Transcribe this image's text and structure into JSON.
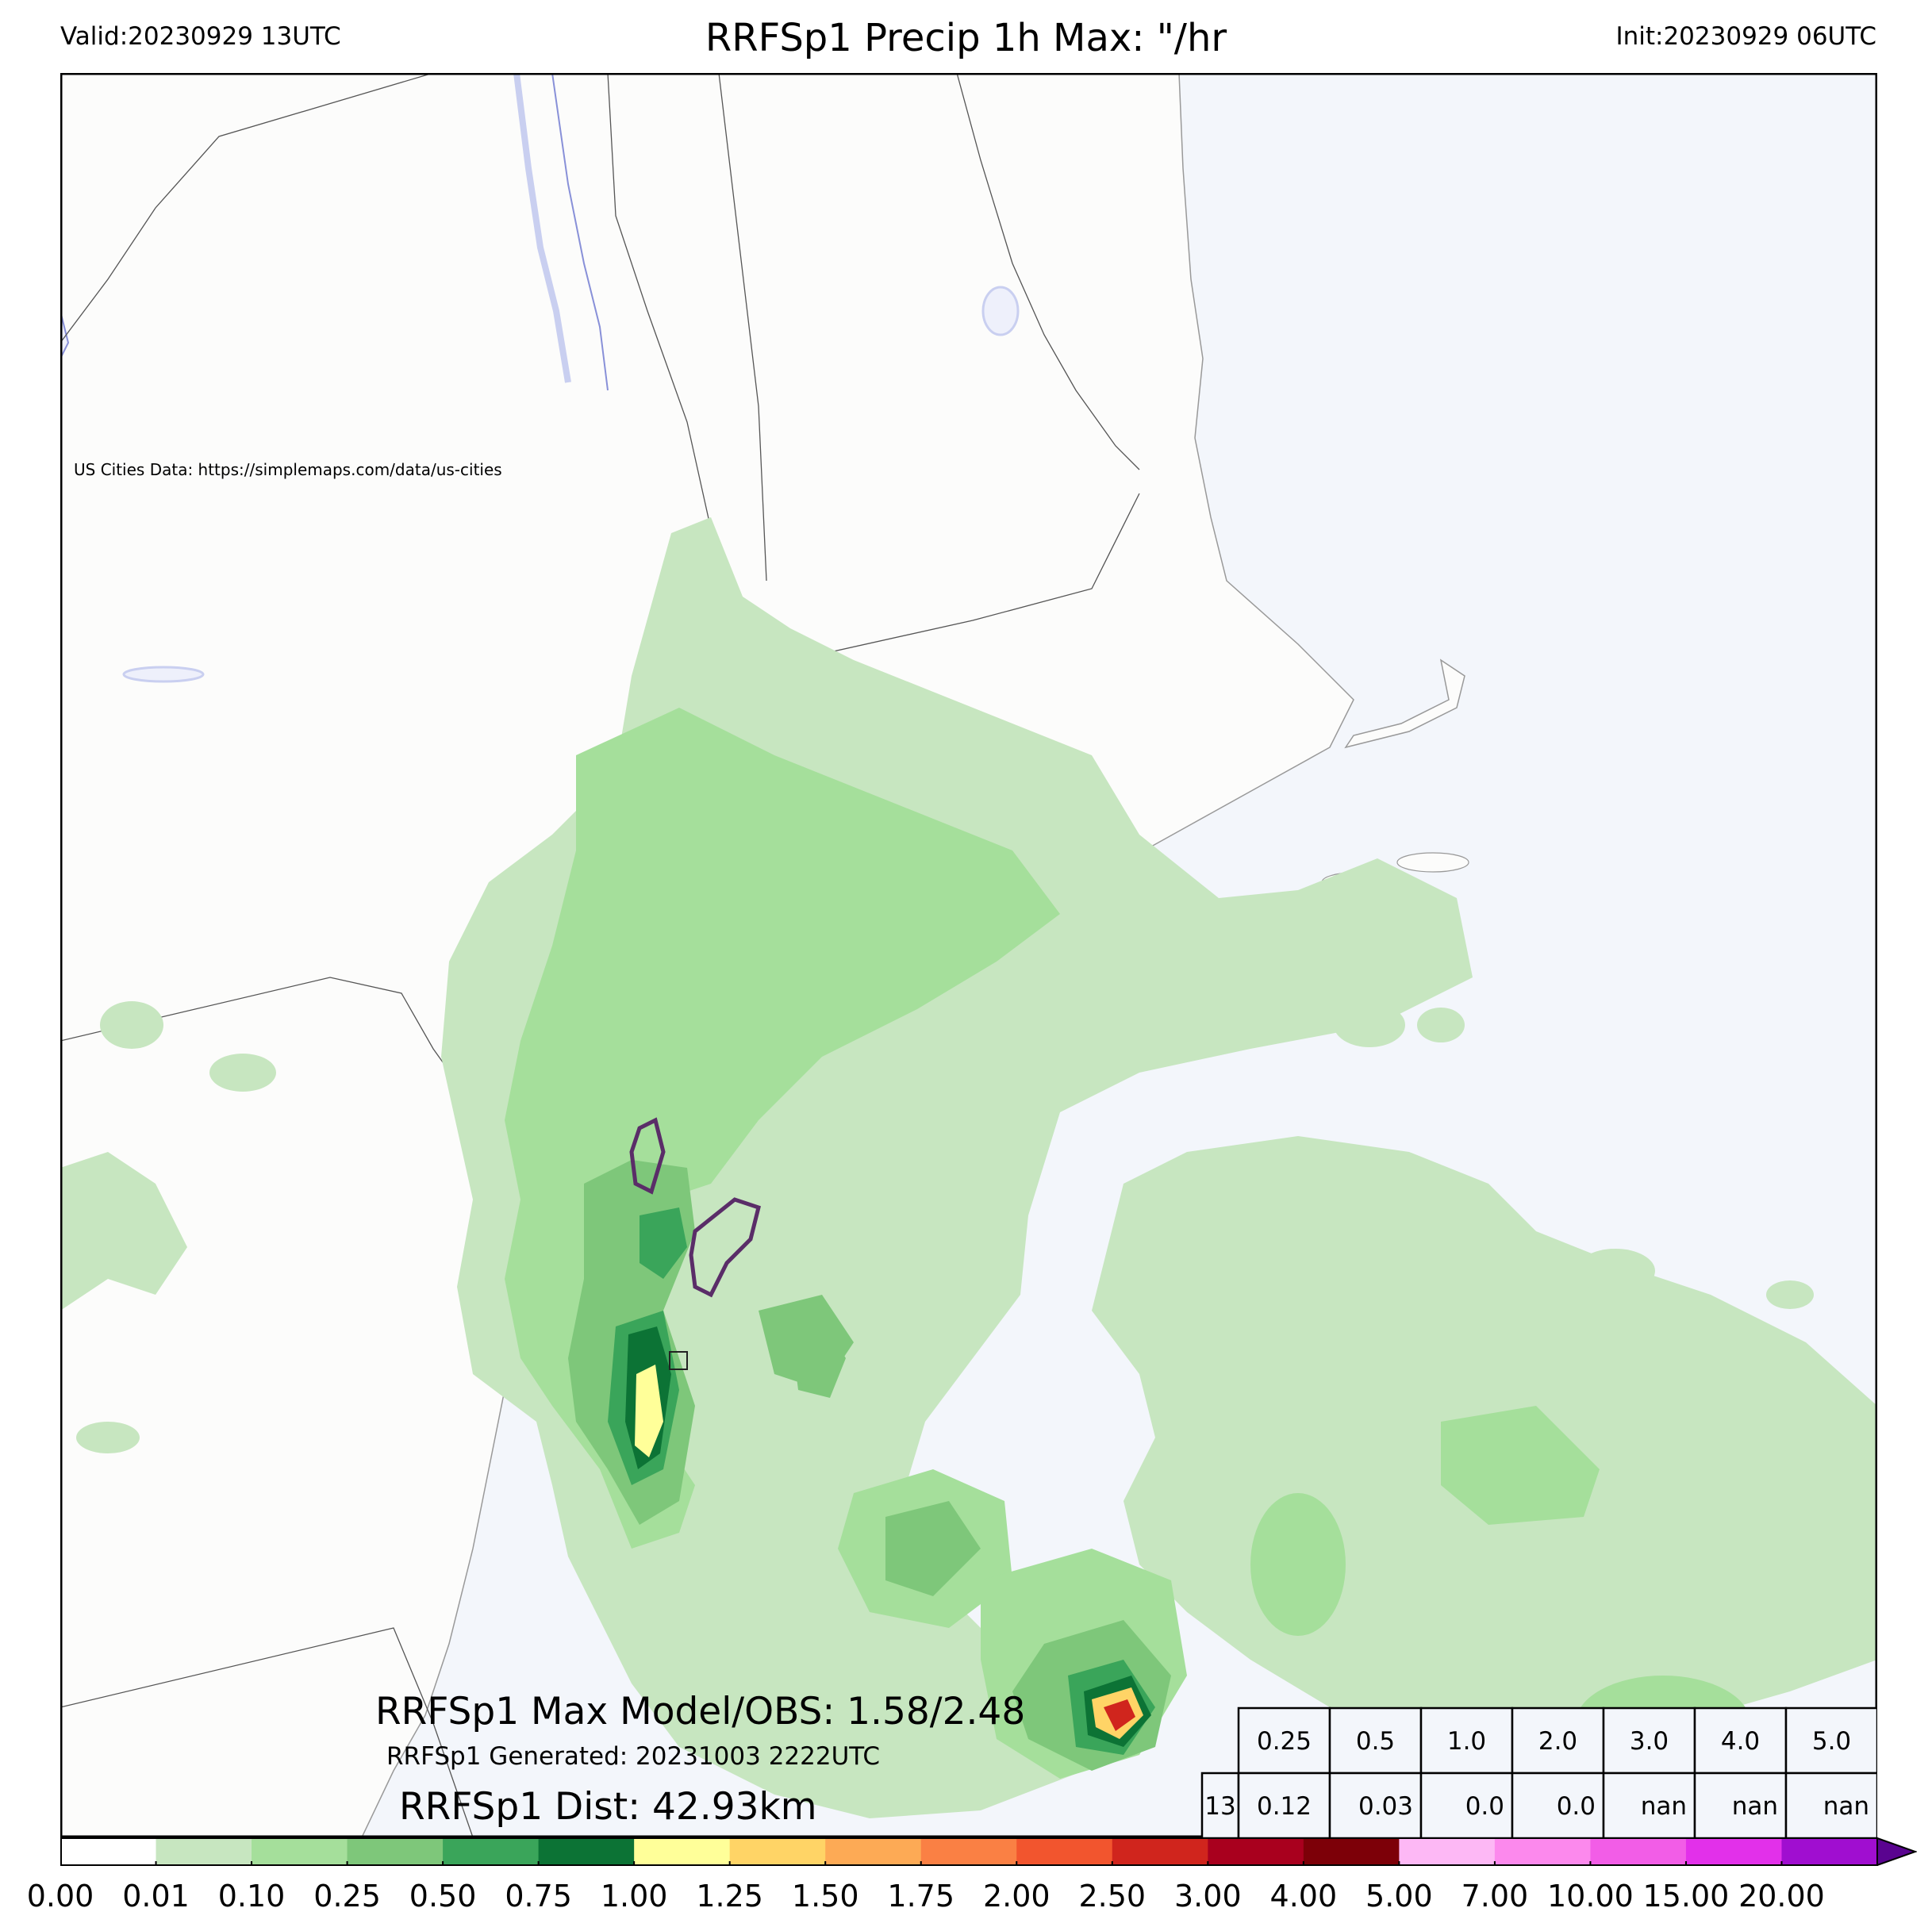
{
  "header": {
    "valid": "Valid:20230929 13UTC",
    "title": "RRFSp1 Precip 1h Max: \"/hr",
    "init": "Init:20230929 06UTC"
  },
  "credit": "US Cities Data: https://simplemaps.com/data/us-cities",
  "annotations": {
    "max_model_obs": "RRFSp1 Max Model/OBS: 1.58/2.48",
    "generated": "RRFSp1 Generated: 20231003 2222UTC",
    "distance": "RRFSp1 Dist: 42.93km"
  },
  "colorbar": {
    "ticks": [
      "0.00",
      "0.01",
      "0.10",
      "0.25",
      "0.50",
      "0.75",
      "1.00",
      "1.25",
      "1.50",
      "1.75",
      "2.00",
      "2.50",
      "3.00",
      "4.00",
      "5.00",
      "7.00",
      "10.00",
      "15.00",
      "20.00"
    ],
    "colors": [
      "#ffffff",
      "#c7e6c0",
      "#a5df9b",
      "#7ec77a",
      "#3aa55a",
      "#0c7335",
      "#ffff99",
      "#ffd466",
      "#fdaa55",
      "#fa8044",
      "#f2552e",
      "#d0251d",
      "#a9001e",
      "#7d0008",
      "#fdb8f5",
      "#fc89ed",
      "#f25de7",
      "#e230ea",
      "#a00ed0"
    ],
    "extend_color": "#5a0490"
  },
  "stats": {
    "header": [
      "0.25",
      "0.5",
      "1.0",
      "2.0",
      "3.0",
      "4.0",
      "5.0"
    ],
    "row_label": "13",
    "row": [
      "0.12",
      "0.03",
      "0.0",
      "0.0",
      "nan",
      "nan",
      "nan"
    ]
  },
  "colors": {
    "land": "#fcfcfb",
    "water": "#f3f6fb",
    "border": "#555555",
    "contour": "#5a2d68"
  }
}
